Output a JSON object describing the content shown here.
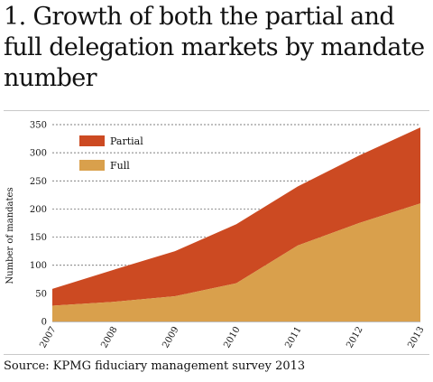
{
  "title": "1. Growth of both the partial and full delegation markets by mandate number",
  "source": "Source: KPMG fiduciary management survey 2013",
  "colors": {
    "partial": "#cc4a22",
    "full": "#d9a04c",
    "grid": "#555555"
  },
  "chart_data": {
    "type": "area",
    "stacked": true,
    "title": "1. Growth of both the partial and full delegation markets by mandate number",
    "xlabel": "",
    "ylabel": "Number of mandates",
    "categories": [
      "2007",
      "2008",
      "2009",
      "2010",
      "2011",
      "2012",
      "2013"
    ],
    "ylim": [
      0,
      350
    ],
    "yticks": [
      0,
      50,
      100,
      150,
      200,
      250,
      300,
      350
    ],
    "grid": "dashed horizontal",
    "legend_position": "top-left",
    "series": [
      {
        "name": "Full",
        "values": [
          28,
          35,
          45,
          68,
          135,
          175,
          210
        ],
        "color": "#d9a04c"
      },
      {
        "name": "Partial",
        "values": [
          30,
          57,
          80,
          105,
          105,
          120,
          135
        ],
        "color": "#cc4a22"
      }
    ]
  }
}
